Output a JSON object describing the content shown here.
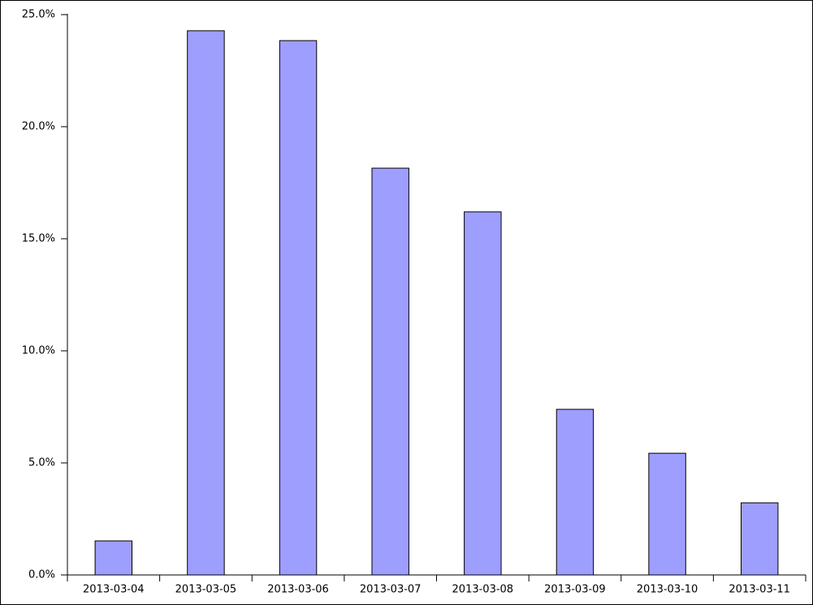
{
  "chart_data": {
    "type": "bar",
    "categories": [
      "2013-03-04",
      "2013-03-05",
      "2013-03-06",
      "2013-03-07",
      "2013-03-08",
      "2013-03-09",
      "2013-03-10",
      "2013-03-11"
    ],
    "values": [
      1.52,
      24.28,
      23.84,
      18.15,
      16.2,
      7.39,
      5.43,
      3.22
    ],
    "color": "#9e9eff",
    "ylim": [
      0,
      25
    ],
    "yticks": [
      {
        "value": 0,
        "label": "0.0%"
      },
      {
        "value": 5,
        "label": "5.0%"
      },
      {
        "value": 10,
        "label": "10.0%"
      },
      {
        "value": 15,
        "label": "15.0%"
      },
      {
        "value": 20,
        "label": "20.0%"
      },
      {
        "value": 25,
        "label": "25.0%"
      }
    ],
    "grid": false
  }
}
